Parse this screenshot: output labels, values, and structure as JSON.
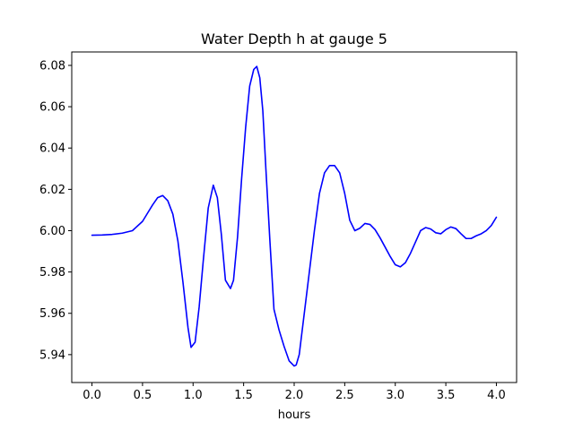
{
  "chart_data": {
    "type": "line",
    "title": "Water Depth h at gauge 5",
    "xlabel": "hours",
    "ylabel": "",
    "xlim": [
      -0.2,
      4.2
    ],
    "ylim": [
      5.9265,
      6.0865
    ],
    "xticks": [
      0.0,
      0.5,
      1.0,
      1.5,
      2.0,
      2.5,
      3.0,
      3.5,
      4.0
    ],
    "xtick_labels": [
      "0.0",
      "0.5",
      "1.0",
      "1.5",
      "2.0",
      "2.5",
      "3.0",
      "3.5",
      "4.0"
    ],
    "yticks": [
      5.94,
      5.96,
      5.98,
      6.0,
      6.02,
      6.04,
      6.06,
      6.08
    ],
    "ytick_labels": [
      "5.94",
      "5.96",
      "5.98",
      "6.00",
      "6.02",
      "6.04",
      "6.06",
      "6.08"
    ],
    "grid": false,
    "series": [
      {
        "color": "#0000ff",
        "x": [
          0.0,
          0.1,
          0.2,
          0.3,
          0.4,
          0.5,
          0.55,
          0.6,
          0.65,
          0.7,
          0.75,
          0.8,
          0.85,
          0.9,
          0.95,
          0.98,
          1.02,
          1.06,
          1.1,
          1.15,
          1.2,
          1.24,
          1.28,
          1.32,
          1.37,
          1.4,
          1.44,
          1.48,
          1.52,
          1.56,
          1.6,
          1.63,
          1.66,
          1.69,
          1.72,
          1.76,
          1.8,
          1.85,
          1.9,
          1.95,
          2.0,
          2.02,
          2.05,
          2.1,
          2.15,
          2.2,
          2.25,
          2.3,
          2.35,
          2.4,
          2.45,
          2.5,
          2.55,
          2.6,
          2.65,
          2.7,
          2.75,
          2.8,
          2.85,
          2.9,
          2.95,
          3.0,
          3.05,
          3.1,
          3.15,
          3.2,
          3.25,
          3.3,
          3.35,
          3.4,
          3.45,
          3.5,
          3.55,
          3.6,
          3.65,
          3.7,
          3.75,
          3.8,
          3.85,
          3.9,
          3.95,
          4.0
        ],
        "values": [
          5.9978,
          5.9979,
          5.9982,
          5.9988,
          6.0,
          6.0045,
          6.0085,
          6.0125,
          6.016,
          6.017,
          6.0145,
          6.008,
          5.995,
          5.975,
          5.953,
          5.9435,
          5.946,
          5.963,
          5.985,
          6.011,
          6.022,
          6.016,
          5.998,
          5.976,
          5.972,
          5.976,
          5.997,
          6.025,
          6.05,
          6.07,
          6.078,
          6.0795,
          6.074,
          6.058,
          6.03,
          5.995,
          5.962,
          5.952,
          5.944,
          5.937,
          5.9345,
          5.935,
          5.94,
          5.96,
          5.98,
          6.0,
          6.018,
          6.028,
          6.0315,
          6.0315,
          6.028,
          6.018,
          6.005,
          6.0,
          6.0012,
          6.0035,
          6.003,
          6.0005,
          5.9965,
          5.992,
          5.9875,
          5.9835,
          5.9825,
          5.9845,
          5.989,
          5.9945,
          6.0,
          6.0015,
          6.0008,
          5.999,
          5.9985,
          6.0005,
          6.0018,
          6.001,
          5.9985,
          5.9962,
          5.9962,
          5.9975,
          5.9985,
          6.0,
          6.0025,
          6.0065
        ]
      }
    ]
  }
}
